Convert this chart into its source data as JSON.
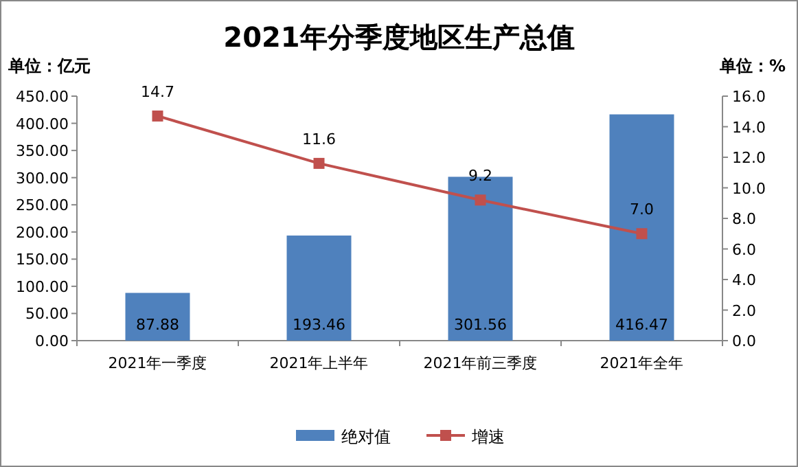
{
  "chart_data": {
    "type": "bar",
    "title": "2021年分季度地区生产总值",
    "ylabel": "单位：亿元",
    "y2label": "单位：%",
    "categories": [
      "2021年一季度",
      "2021年上半年",
      "2021年前三季度",
      "2021年全年"
    ],
    "series": [
      {
        "name": "绝对值",
        "color": "#4f81bd",
        "values": [
          87.88,
          193.46,
          301.56,
          416.47
        ],
        "value_labels": [
          "87.88",
          "193.46",
          "301.56",
          "416.47"
        ]
      },
      {
        "name": "增速",
        "type": "line",
        "axis": "y2",
        "color": "#c0504d",
        "marker": "square",
        "values": [
          14.7,
          11.6,
          9.2,
          7.0
        ],
        "value_labels": [
          "14.7",
          "11.6",
          "9.2",
          "7.0"
        ]
      }
    ],
    "ylim": [
      0,
      450
    ],
    "yticks": [
      {
        "value": 0,
        "label": "0.00"
      },
      {
        "value": 50,
        "label": "50.00"
      },
      {
        "value": 100,
        "label": "100.00"
      },
      {
        "value": 150,
        "label": "150.00"
      },
      {
        "value": 200,
        "label": "200.00"
      },
      {
        "value": 250,
        "label": "250.00"
      },
      {
        "value": 300,
        "label": "300.00"
      },
      {
        "value": 350,
        "label": "350.00"
      },
      {
        "value": 400,
        "label": "400.00"
      },
      {
        "value": 450,
        "label": "450.00"
      }
    ],
    "y2lim": [
      0,
      16
    ],
    "y2ticks": [
      {
        "value": 0,
        "label": "0.0"
      },
      {
        "value": 2,
        "label": "2.0"
      },
      {
        "value": 4,
        "label": "4.0"
      },
      {
        "value": 6,
        "label": "6.0"
      },
      {
        "value": 8,
        "label": "8.0"
      },
      {
        "value": 10,
        "label": "10.0"
      },
      {
        "value": 12,
        "label": "12.0"
      },
      {
        "value": 14,
        "label": "14.0"
      },
      {
        "value": 16,
        "label": "16.0"
      }
    ],
    "legend": "bottom"
  }
}
